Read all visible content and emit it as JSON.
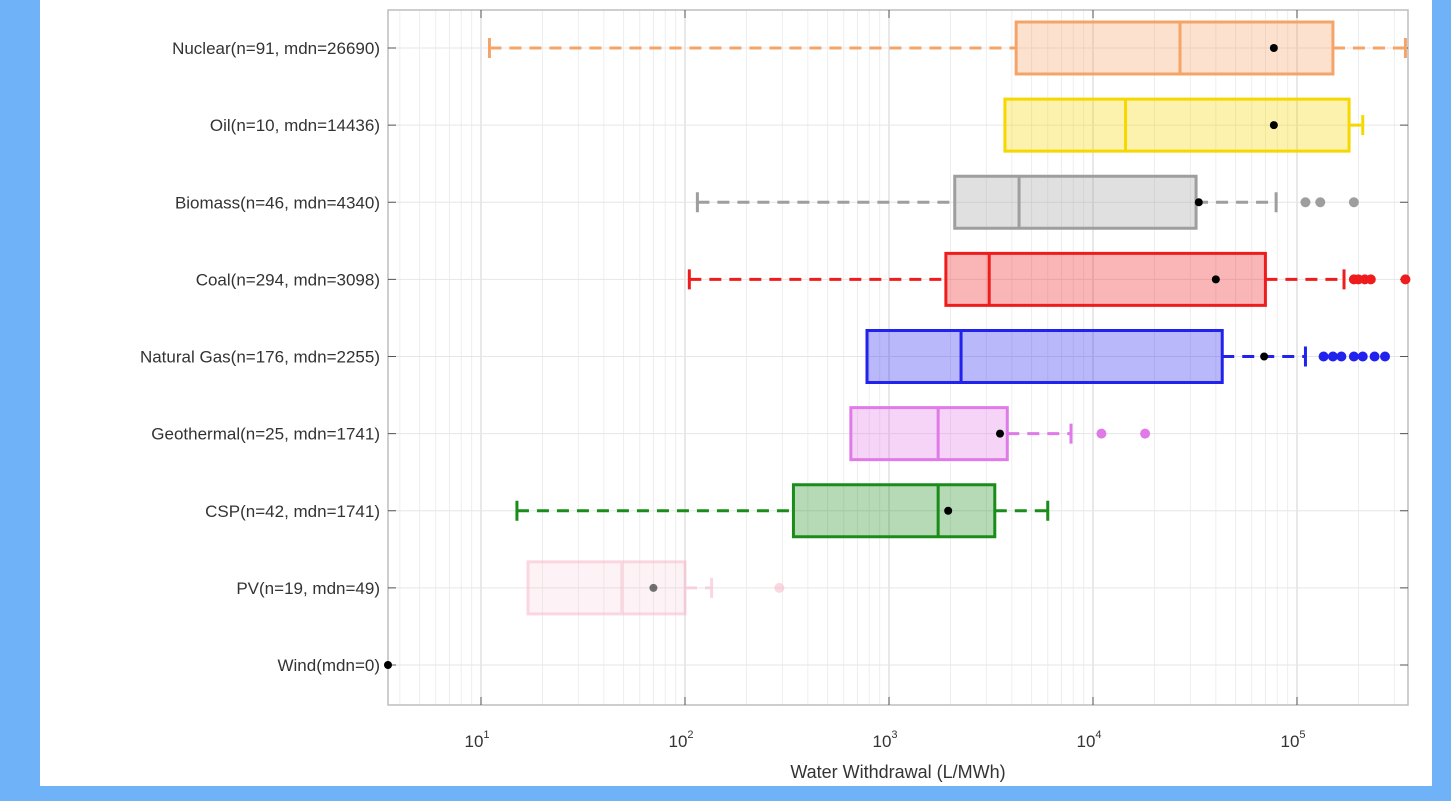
{
  "chart_data": {
    "type": "boxplot",
    "orientation": "horizontal",
    "title": "",
    "xlabel": "Water Withdrawal (L/MWh)",
    "ylabel": "",
    "xscale": "log",
    "xlim": [
      3.5,
      350000
    ],
    "x_ticks": [
      {
        "value": 10,
        "base": "10",
        "exp": "1"
      },
      {
        "value": 100,
        "base": "10",
        "exp": "2"
      },
      {
        "value": 1000,
        "base": "10",
        "exp": "3"
      },
      {
        "value": 10000,
        "base": "10",
        "exp": "4"
      },
      {
        "value": 100000,
        "base": "10",
        "exp": "5"
      }
    ],
    "grid": true,
    "legend": "none",
    "categories": [
      {
        "label": "Nuclear(n=91, mdn=26690)",
        "color": "#f5a468",
        "whisker_low": 11,
        "q1": 4200,
        "median": 26690,
        "q3": 150000,
        "whisker_high": 340000,
        "mean": 77000,
        "outliers": [],
        "dashed": true,
        "faded": false
      },
      {
        "label": "Oil(n=10, mdn=14436)",
        "color": "#f5d800",
        "whisker_low": 3700,
        "q1": 3700,
        "median": 14436,
        "q3": 180000,
        "whisker_high": 210000,
        "mean": 77000,
        "outliers": [],
        "dashed": true,
        "faded": false
      },
      {
        "label": "Biomass(n=46, mdn=4340)",
        "color": "#9e9e9e",
        "whisker_low": 115,
        "q1": 2100,
        "median": 4340,
        "q3": 32000,
        "whisker_high": 79000,
        "mean": 33000,
        "outliers": [
          110000,
          130000,
          190000
        ],
        "dashed": true,
        "faded": false
      },
      {
        "label": "Coal(n=294, mdn=3098)",
        "color": "#ee1c1c",
        "whisker_low": 105,
        "q1": 1900,
        "median": 3098,
        "q3": 70000,
        "whisker_high": 170000,
        "mean": 40000,
        "outliers": [
          190000,
          200000,
          215000,
          230000,
          340000
        ],
        "dashed": true,
        "faded": false
      },
      {
        "label": "Natural Gas(n=176, mdn=2255)",
        "color": "#2222ee",
        "whisker_low": 780,
        "q1": 780,
        "median": 2255,
        "q3": 43000,
        "whisker_high": 110000,
        "mean": 69000,
        "outliers": [
          135000,
          150000,
          165000,
          190000,
          210000,
          240000,
          270000
        ],
        "dashed": true,
        "faded": false
      },
      {
        "label": "Geothermal(n=25, mdn=1741)",
        "color": "#e07ae8",
        "whisker_low": 650,
        "q1": 650,
        "median": 1741,
        "q3": 3800,
        "whisker_high": 7800,
        "mean": 3500,
        "outliers": [
          11000,
          18000
        ],
        "dashed": true,
        "faded": false
      },
      {
        "label": "CSP(n=42, mdn=1741)",
        "color": "#1a8c1a",
        "whisker_low": 15,
        "q1": 340,
        "median": 1741,
        "q3": 3300,
        "whisker_high": 6000,
        "mean": 1950,
        "outliers": [],
        "dashed": true,
        "faded": false
      },
      {
        "label": "PV(n=19, mdn=49)",
        "color": "#f7b8c8",
        "whisker_low": 17,
        "q1": 17,
        "median": 49,
        "q3": 100,
        "whisker_high": 135,
        "mean": 70,
        "outliers": [
          290
        ],
        "dashed": true,
        "faded": true
      },
      {
        "label": "Wind(mdn=0)",
        "color": "#111111",
        "whisker_low": null,
        "q1": null,
        "median": null,
        "q3": null,
        "whisker_high": null,
        "mean": 3.5,
        "outliers": [],
        "dashed": false,
        "faded": false
      }
    ]
  }
}
